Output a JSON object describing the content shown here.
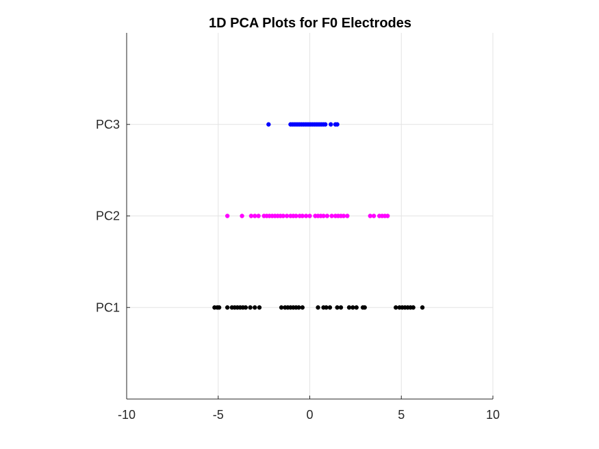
{
  "chart_data": {
    "type": "scatter",
    "title": "1D PCA Plots for F0 Electrodes",
    "xlabel": "",
    "ylabel": "",
    "xlim": [
      -10,
      10
    ],
    "ylim": [
      0,
      4
    ],
    "x_ticks": [
      -10,
      -5,
      0,
      5,
      10
    ],
    "x_tick_labels": [
      "-10",
      "-5",
      "0",
      "5",
      "10"
    ],
    "y_ticks": [
      1,
      2,
      3
    ],
    "y_tick_labels": [
      "PC1",
      "PC2",
      "PC3"
    ],
    "grid": true,
    "series": [
      {
        "y": 1,
        "color": "#000000",
        "x": [
          -5.2,
          -5.05,
          -4.95,
          -4.5,
          -4.25,
          -4.1,
          -3.95,
          -3.8,
          -3.65,
          -3.5,
          -3.25,
          -3.0,
          -2.75,
          -1.55,
          -1.35,
          -1.2,
          -1.05,
          -0.9,
          -0.75,
          -0.6,
          -0.4,
          0.45,
          0.75,
          0.9,
          1.1,
          1.5,
          1.7,
          2.15,
          2.35,
          2.55,
          2.9,
          3.0,
          4.7,
          4.9,
          5.05,
          5.2,
          5.35,
          5.5,
          5.65,
          6.15
        ]
      },
      {
        "y": 2,
        "color": "#ff00ff",
        "x": [
          -4.5,
          -3.7,
          -3.2,
          -3.0,
          -2.8,
          -2.5,
          -2.35,
          -2.2,
          -2.05,
          -1.9,
          -1.75,
          -1.6,
          -1.45,
          -1.25,
          -1.05,
          -0.9,
          -0.75,
          -0.55,
          -0.4,
          -0.2,
          0.0,
          0.3,
          0.45,
          0.6,
          0.75,
          0.95,
          1.2,
          1.4,
          1.55,
          1.7,
          1.85,
          2.05,
          3.3,
          3.5,
          3.8,
          3.95,
          4.1,
          4.25
        ]
      },
      {
        "y": 3,
        "color": "#0000ff",
        "x": [
          -2.25,
          -1.05,
          -0.95,
          -0.85,
          -0.75,
          -0.65,
          -0.55,
          -0.45,
          -0.35,
          -0.25,
          -0.15,
          -0.05,
          0.05,
          0.15,
          0.25,
          0.35,
          0.45,
          0.55,
          0.65,
          0.75,
          0.85,
          1.15,
          1.4,
          1.5
        ]
      }
    ]
  }
}
